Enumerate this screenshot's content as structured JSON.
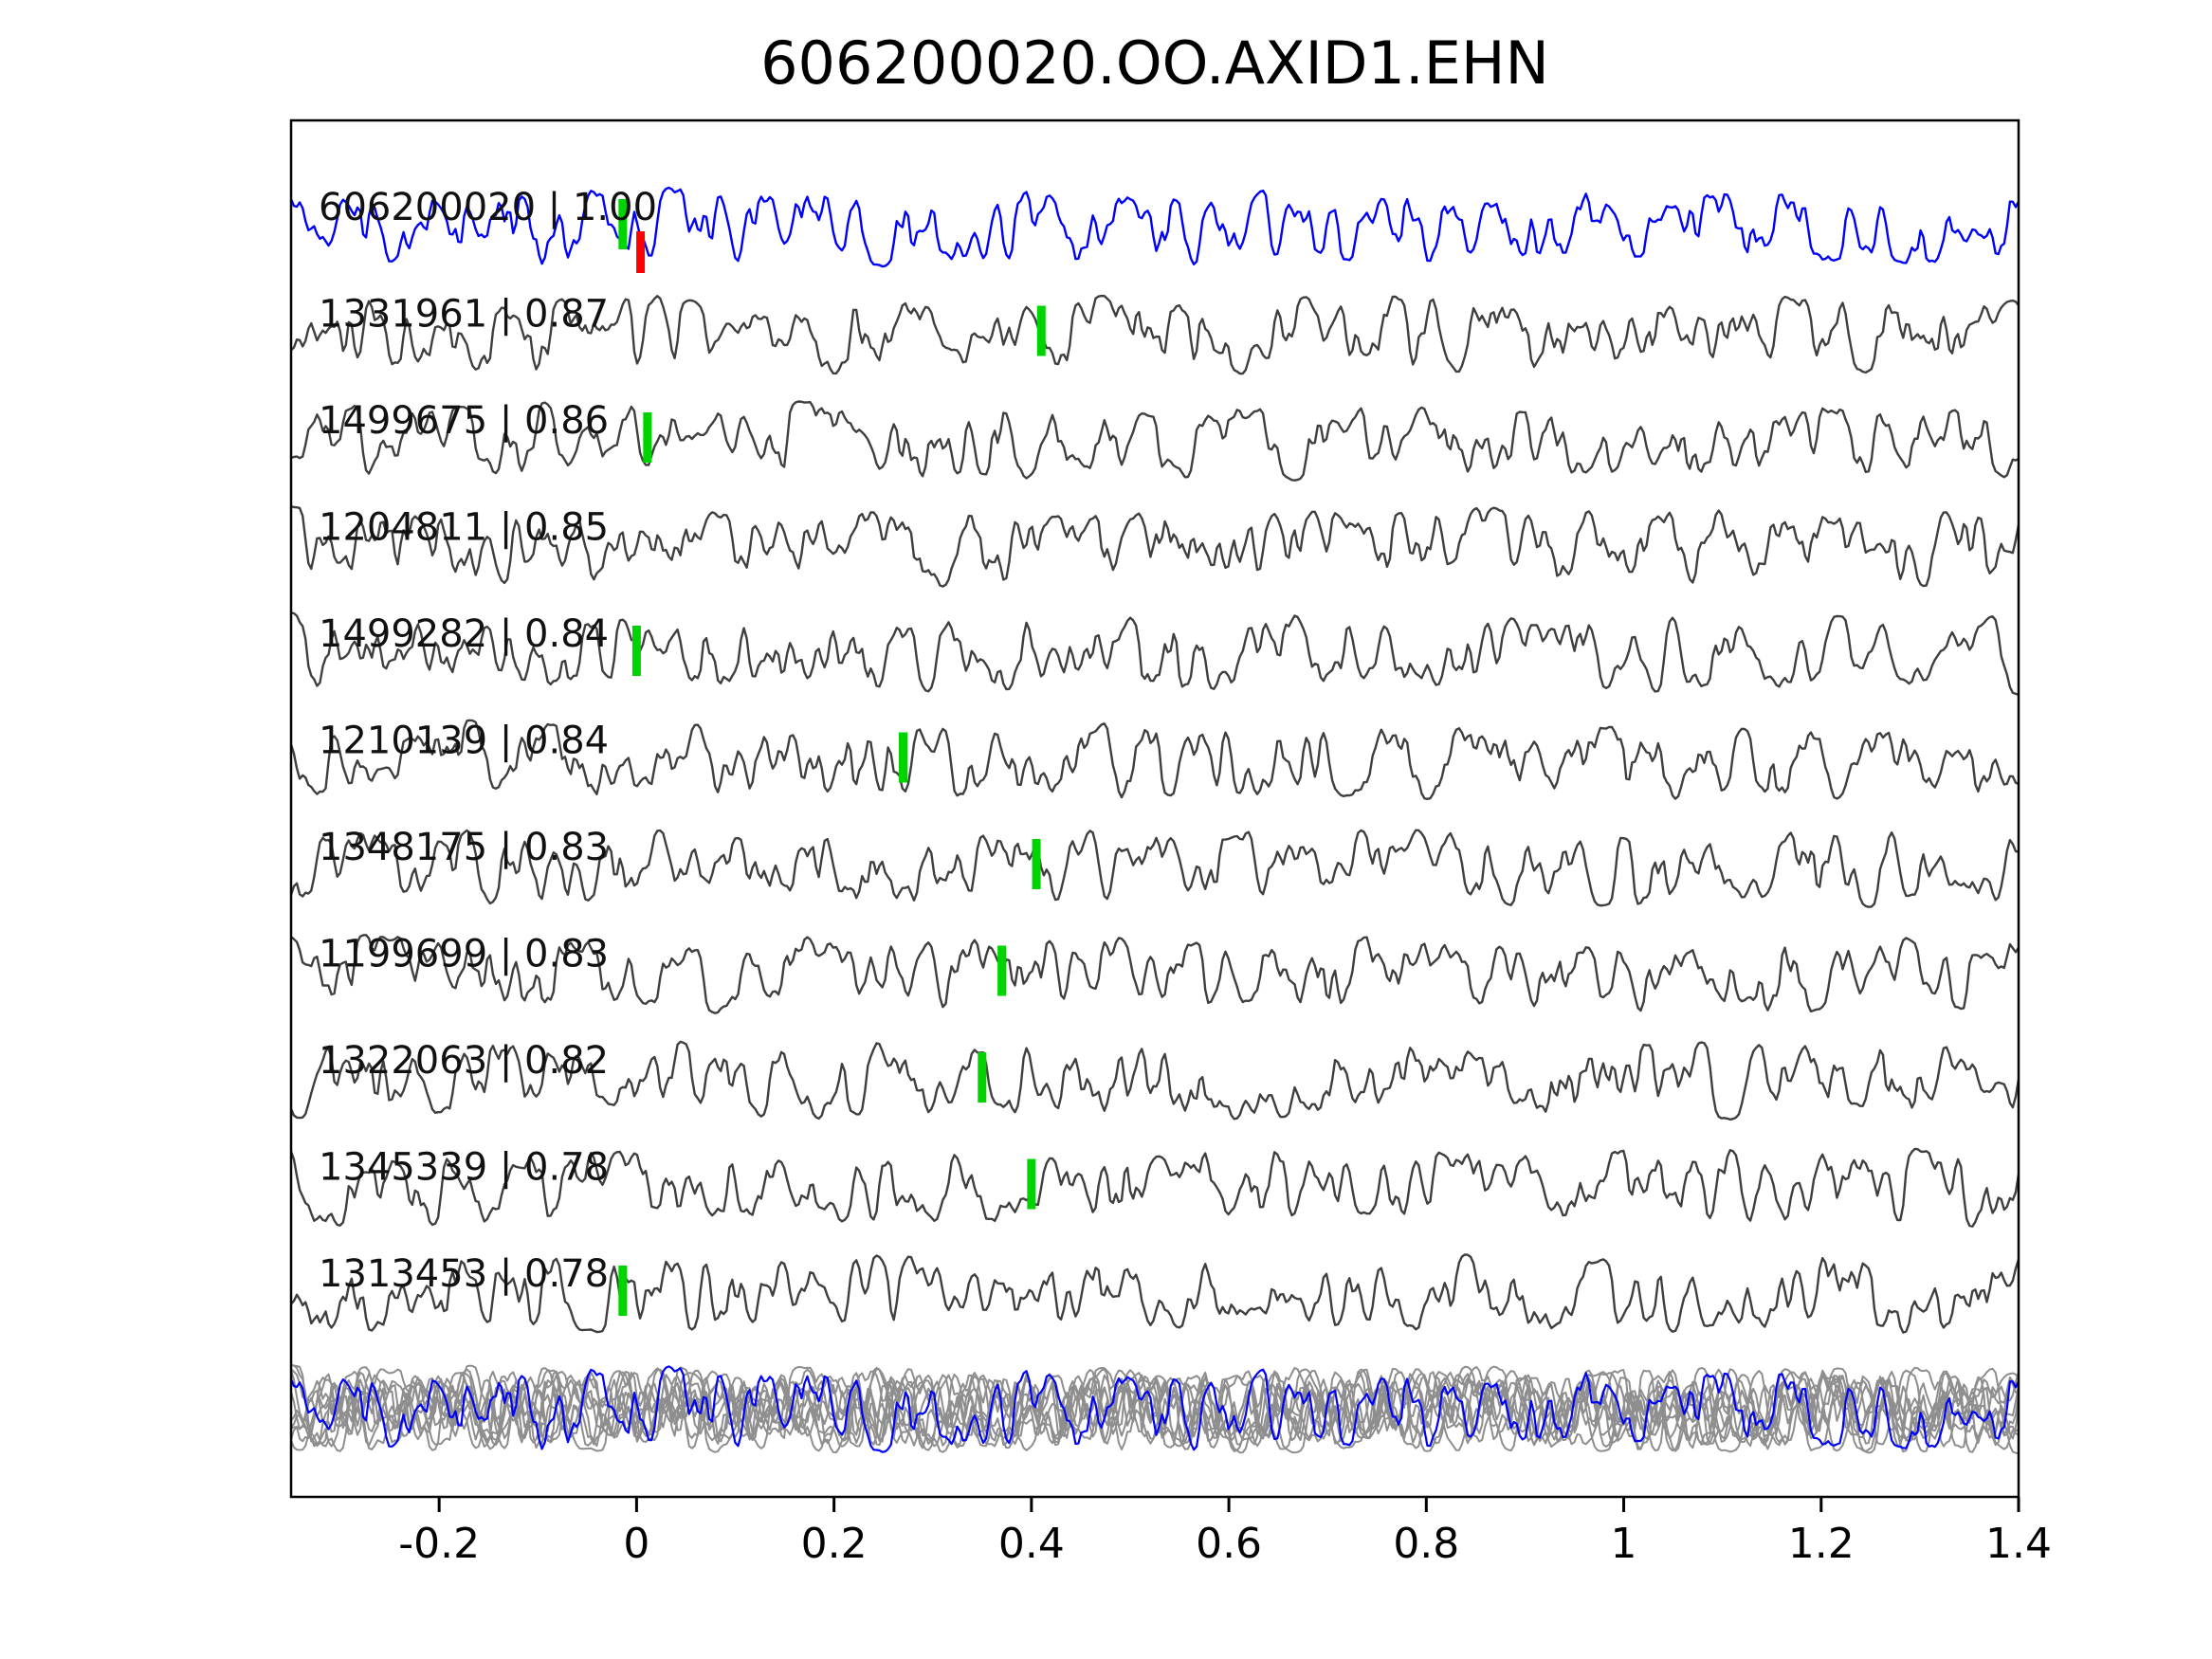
{
  "title": "606200020.OO.AXID1.EHN",
  "colors": {
    "reference_trace": "#0000ff",
    "match_trace": "#3f3f3f",
    "overlay_gray": "#8e8e8e",
    "pick_green": "#00d400",
    "pick_red": "#ff0000",
    "axis": "#000000",
    "label_text": "#111111",
    "background": "#ffffff"
  },
  "chart_data": {
    "type": "line",
    "title": "606200020.OO.AXID1.EHN",
    "xlabel": "",
    "ylabel": "",
    "xlim": [
      -0.35,
      1.4
    ],
    "grid": false,
    "legend": false,
    "x_tick_labels": [
      "-0.2",
      "0",
      "0.2",
      "0.4",
      "0.6",
      "0.8",
      "1",
      "1.2",
      "1.4"
    ],
    "x_tick_values": [
      -0.2,
      0,
      0.2,
      0.4,
      0.6,
      0.8,
      1.0,
      1.2,
      1.4
    ],
    "traces": [
      {
        "id": "606200020",
        "correlation": "1.00",
        "label": "606200020 | 1.00",
        "role": "reference",
        "picks": [
          {
            "x": -0.014,
            "color": "green"
          },
          {
            "x": 0.004,
            "color": "red"
          }
        ]
      },
      {
        "id": "1331961",
        "correlation": "0.87",
        "label": "1331961 | 0.87",
        "role": "match",
        "picks": [
          {
            "x": 0.41,
            "color": "green"
          }
        ]
      },
      {
        "id": "1499675",
        "correlation": "0.86",
        "label": "1499675 | 0.86",
        "role": "match",
        "picks": [
          {
            "x": 0.011,
            "color": "green"
          }
        ]
      },
      {
        "id": "1204811",
        "correlation": "0.85",
        "label": "1204811 | 0.85",
        "role": "match",
        "picks": []
      },
      {
        "id": "1499282",
        "correlation": "0.84",
        "label": "1499282 | 0.84",
        "role": "match",
        "picks": [
          {
            "x": 0.0,
            "color": "green"
          }
        ]
      },
      {
        "id": "1210139",
        "correlation": "0.84",
        "label": "1210139 | 0.84",
        "role": "match",
        "picks": [
          {
            "x": 0.27,
            "color": "green"
          }
        ]
      },
      {
        "id": "1348175",
        "correlation": "0.83",
        "label": "1348175 | 0.83",
        "role": "match",
        "picks": [
          {
            "x": 0.405,
            "color": "green"
          }
        ]
      },
      {
        "id": "1199699",
        "correlation": "0.83",
        "label": "1199699 | 0.83",
        "role": "match",
        "picks": [
          {
            "x": 0.37,
            "color": "green"
          }
        ]
      },
      {
        "id": "1322063",
        "correlation": "0.82",
        "label": "1322063 | 0.82",
        "role": "match",
        "picks": [
          {
            "x": 0.35,
            "color": "green"
          }
        ]
      },
      {
        "id": "1345339",
        "correlation": "0.78",
        "label": "1345339 | 0.78",
        "role": "match",
        "picks": [
          {
            "x": 0.4,
            "color": "green"
          }
        ]
      },
      {
        "id": "1313453",
        "correlation": "0.78",
        "label": "1313453 | 0.78",
        "role": "match",
        "picks": [
          {
            "x": -0.014,
            "color": "green"
          }
        ]
      }
    ],
    "has_overlay_row": true
  }
}
